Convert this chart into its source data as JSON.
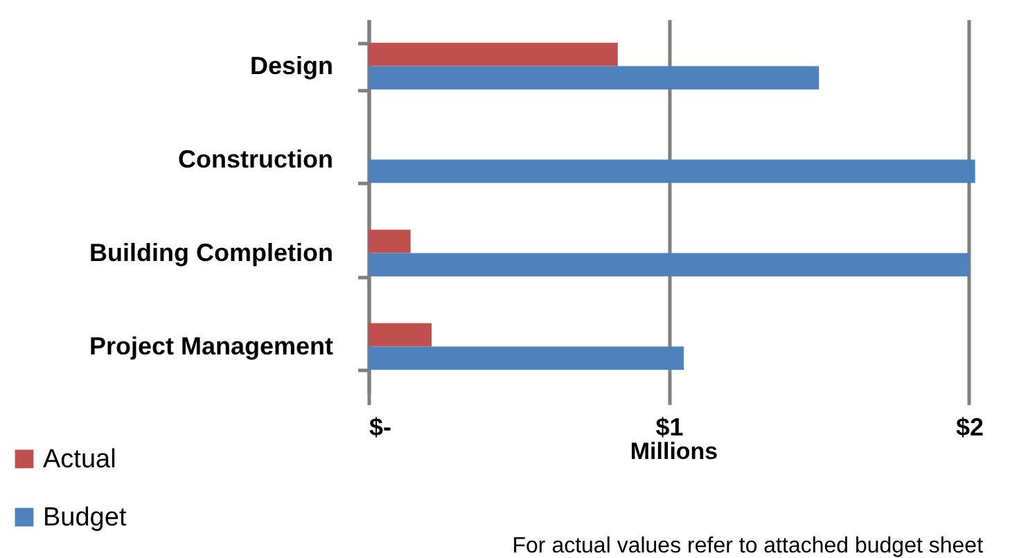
{
  "chart_data": {
    "type": "bar",
    "orientation": "horizontal",
    "categories": [
      "Design",
      "Construction",
      "Building Completion",
      "Project Management"
    ],
    "series": [
      {
        "name": "Actual",
        "color": "#c0504d",
        "values": [
          0.83,
          null,
          0.14,
          0.21
        ]
      },
      {
        "name": "Budget",
        "color": "#4f81bd",
        "values": [
          1.5,
          2.02,
          2.0,
          1.05
        ]
      }
    ],
    "xlim": [
      0,
      2.03
    ],
    "xticks": [
      {
        "value": 0,
        "label": "$-"
      },
      {
        "value": 1,
        "label": "$1"
      },
      {
        "value": 2,
        "label": "$2"
      }
    ],
    "xlabel": "Millions",
    "grid": "x",
    "legend": "bottom left",
    "annotations": [
      "For actual values refer to attached budget sheet"
    ]
  }
}
